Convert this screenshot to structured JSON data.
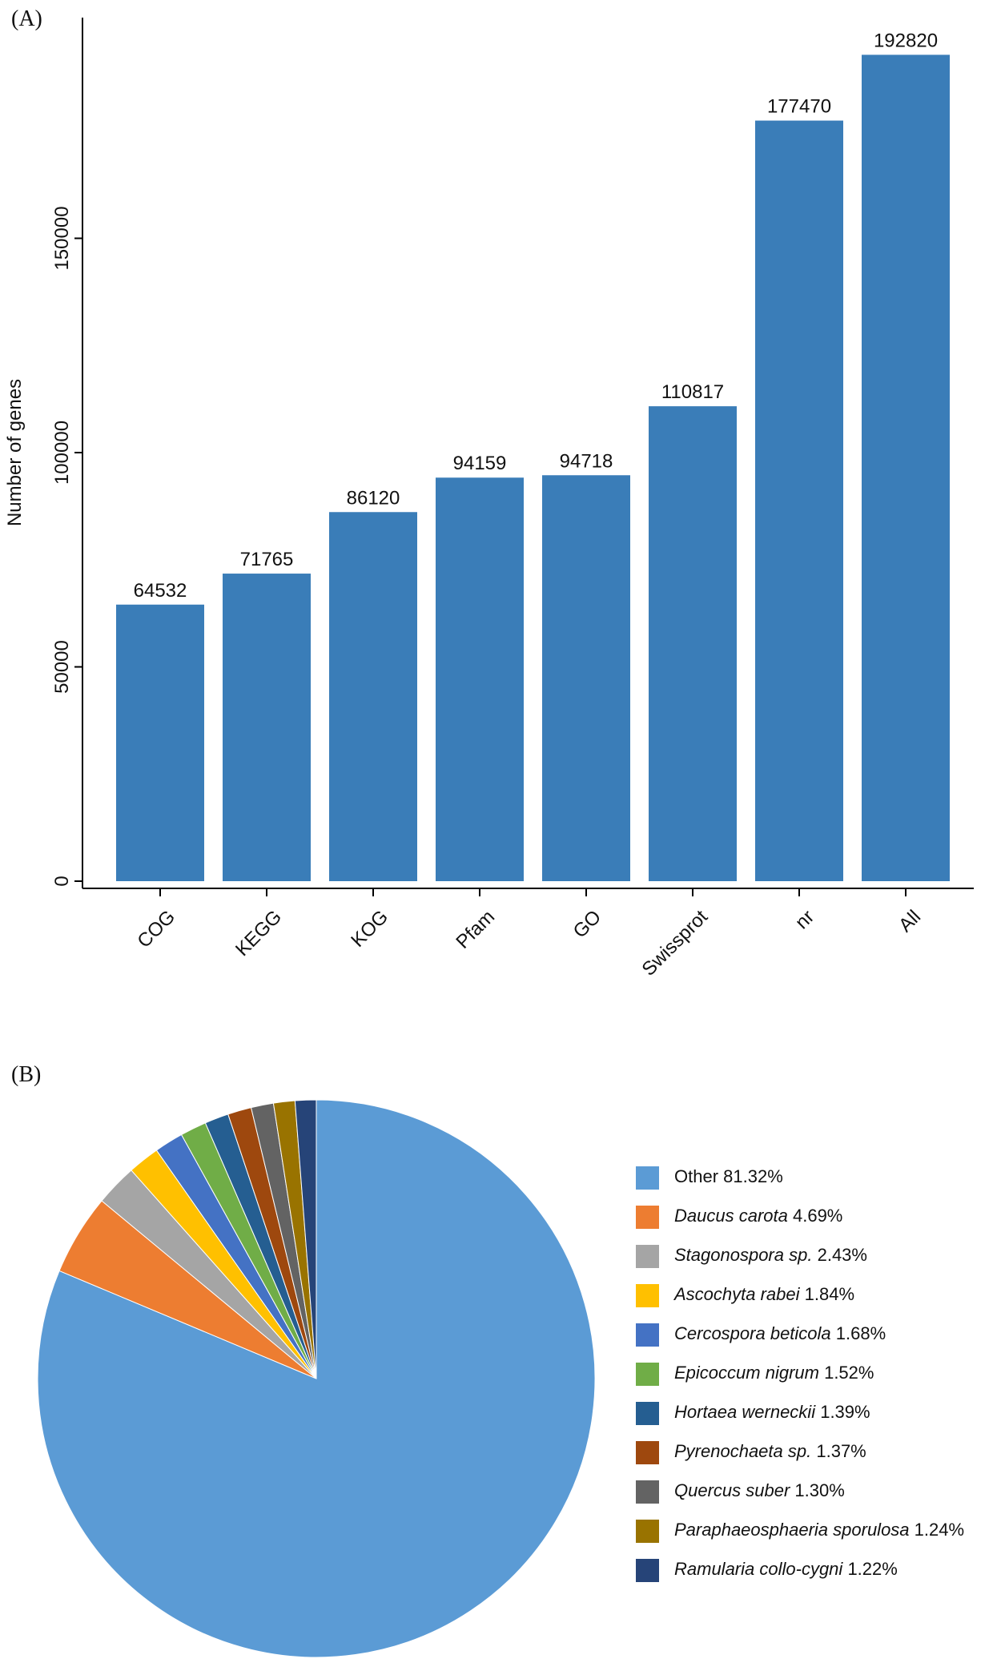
{
  "chart_data": [
    {
      "type": "bar",
      "panel": "(A)",
      "y_label": "Number of genes",
      "categories": [
        "COG",
        "KEGG",
        "KOG",
        "Pfam",
        "GO",
        "Swissprot",
        "nr",
        "All"
      ],
      "values": [
        64532,
        71765,
        86120,
        94159,
        94718,
        110817,
        177470,
        192820
      ],
      "color": "#3a7db8",
      "ylim": [
        0,
        200000
      ],
      "yticks": [
        0,
        50000,
        100000,
        150000
      ],
      "grid": false
    },
    {
      "type": "pie",
      "panel": "(B)",
      "categories": [
        "Other",
        "Daucus carota",
        "Stagonospora sp.",
        "Ascochyta rabei",
        "Cercospora beticola",
        "Epicoccum nigrum",
        "Hortaea werneckii",
        "Pyrenochaeta sp.",
        "Quercus suber",
        "Paraphaeosphaeria sporulosa",
        "Ramularia collo-cygni"
      ],
      "values": [
        81.32,
        4.69,
        2.43,
        1.84,
        1.68,
        1.52,
        1.39,
        1.37,
        1.3,
        1.24,
        1.22
      ],
      "value_labels": [
        "81.32%",
        "4.69%",
        "2.43%",
        "1.84%",
        "1.68%",
        "1.52%",
        "1.39%",
        "1.37%",
        "1.30%",
        "1.24%",
        "1.22%"
      ],
      "colors": [
        "#5b9bd5",
        "#ed7d31",
        "#a5a5a5",
        "#ffc000",
        "#4472c4",
        "#70ad47",
        "#255e91",
        "#9e480e",
        "#636363",
        "#997300",
        "#264478"
      ],
      "italic": [
        false,
        true,
        true,
        true,
        true,
        true,
        true,
        true,
        true,
        true,
        true
      ],
      "legend": "right"
    }
  ]
}
